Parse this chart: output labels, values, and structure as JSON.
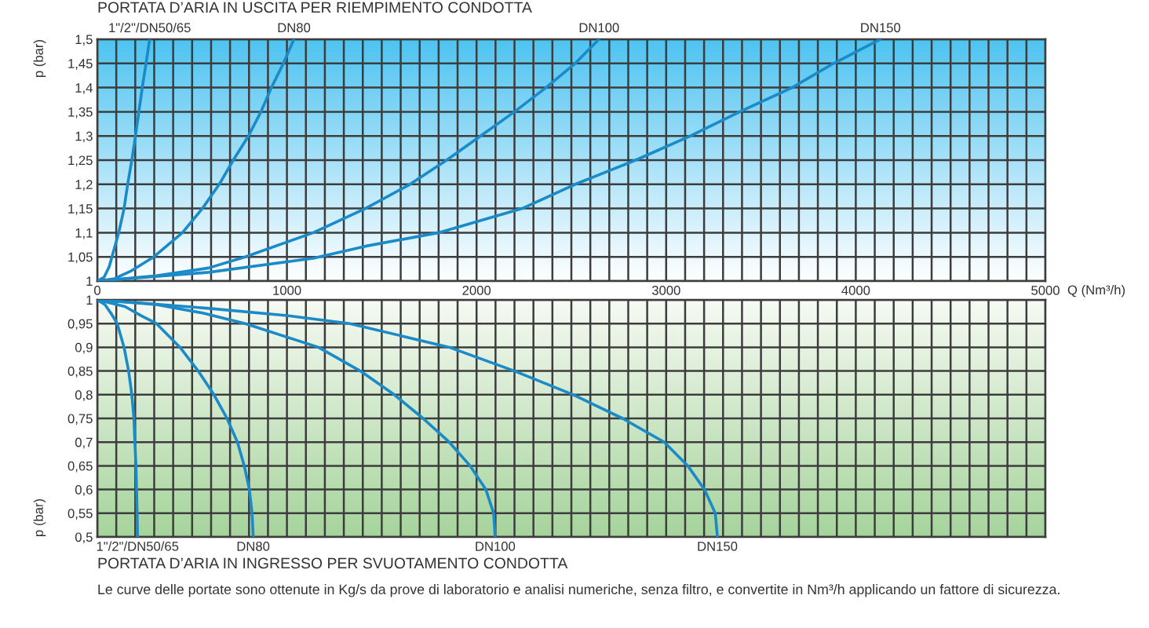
{
  "chart_data": [
    {
      "type": "line",
      "title": "PORTATA D’ARIA IN USCITA PER RIEMPIMENTO CONDOTTA",
      "xlabel": "Q (Nm³/h)",
      "ylabel": "p (bar)",
      "xlim": [
        0,
        5000
      ],
      "ylim": [
        1,
        1.5
      ],
      "xticks": [
        0,
        {
          "value": 100,
          "label": null
        },
        {
          "value": 200,
          "label": null
        },
        {
          "value": 300,
          "label": null
        },
        {
          "value": 400,
          "label": null
        },
        {
          "value": 500,
          "label": null
        },
        {
          "value": 600,
          "label": null
        },
        {
          "value": 700,
          "label": null
        },
        {
          "value": 800,
          "label": null
        },
        {
          "value": 900,
          "label": null
        },
        1000,
        {
          "value": 1100,
          "label": null
        },
        {
          "value": 1200,
          "label": null
        },
        {
          "value": 1300,
          "label": null
        },
        {
          "value": 1400,
          "label": null
        },
        {
          "value": 1500,
          "label": null
        },
        {
          "value": 1600,
          "label": null
        },
        {
          "value": 1700,
          "label": null
        },
        {
          "value": 1800,
          "label": null
        },
        {
          "value": 1900,
          "label": null
        },
        2000,
        {
          "value": 2100,
          "label": null
        },
        {
          "value": 2200,
          "label": null
        },
        {
          "value": 2300,
          "label": null
        },
        {
          "value": 2400,
          "label": null
        },
        {
          "value": 2500,
          "label": null
        },
        {
          "value": 2600,
          "label": null
        },
        {
          "value": 2700,
          "label": null
        },
        {
          "value": 2800,
          "label": null
        },
        {
          "value": 2900,
          "label": null
        },
        3000,
        {
          "value": 3100,
          "label": null
        },
        {
          "value": 3200,
          "label": null
        },
        {
          "value": 3300,
          "label": null
        },
        {
          "value": 3400,
          "label": null
        },
        {
          "value": 3500,
          "label": null
        },
        {
          "value": 3600,
          "label": null
        },
        {
          "value": 3700,
          "label": null
        },
        {
          "value": 3800,
          "label": null
        },
        {
          "value": 3900,
          "label": null
        },
        4000,
        {
          "value": 4100,
          "label": null
        },
        {
          "value": 4200,
          "label": null
        },
        {
          "value": 4300,
          "label": null
        },
        {
          "value": 4400,
          "label": null
        },
        {
          "value": 4500,
          "label": null
        },
        {
          "value": 4600,
          "label": null
        },
        {
          "value": 4700,
          "label": null
        },
        {
          "value": 4800,
          "label": null
        },
        {
          "value": 4900,
          "label": null
        },
        5000
      ],
      "yticks": [
        1,
        {
          "value": 1.05,
          "label": "1,05"
        },
        {
          "value": 1.1,
          "label": "1,1"
        },
        {
          "value": 1.15,
          "label": "1,15"
        },
        {
          "value": 1.2,
          "label": "1,2"
        },
        {
          "value": 1.25,
          "label": "1,25"
        },
        {
          "value": 1.3,
          "label": "1,3"
        },
        {
          "value": 1.35,
          "label": "1,35"
        },
        {
          "value": 1.4,
          "label": "1,4"
        },
        {
          "value": 1.45,
          "label": "1,45"
        },
        {
          "value": 1.5,
          "label": "1,5"
        }
      ],
      "grid": true,
      "series": [
        {
          "name": "1\"/2\"/DN50/65",
          "color": "#1a8bc8",
          "x": [
            0,
            36,
            63,
            77,
            113,
            141,
            160,
            182,
            201,
            219,
            237,
            257,
            276
          ],
          "values": [
            1,
            1.008,
            1.03,
            1.05,
            1.1,
            1.15,
            1.2,
            1.25,
            1.3,
            1.35,
            1.4,
            1.45,
            1.5
          ]
        },
        {
          "name": "DN80",
          "color": "#1a8bc8",
          "x": [
            0,
            91,
            174,
            298,
            449,
            554,
            643,
            717,
            797,
            863,
            918,
            981,
            1037
          ],
          "values": [
            1,
            1.005,
            1.02,
            1.05,
            1.1,
            1.15,
            1.2,
            1.25,
            1.3,
            1.35,
            1.4,
            1.45,
            1.5
          ]
        },
        {
          "name": "DN100",
          "color": "#1a8bc8",
          "x": [
            0,
            311,
            587,
            780,
            1139,
            1414,
            1649,
            1842,
            2021,
            2200,
            2366,
            2520,
            2646
          ],
          "values": [
            1,
            1.011,
            1.027,
            1.05,
            1.1,
            1.15,
            1.2,
            1.25,
            1.3,
            1.35,
            1.4,
            1.45,
            1.5
          ]
        },
        {
          "name": "DN150",
          "color": "#1a8bc8",
          "x": [
            0,
            587,
            1139,
            1414,
            1800,
            2241,
            2520,
            2839,
            3128,
            3388,
            3664,
            3883,
            4130
          ],
          "values": [
            1,
            1.018,
            1.047,
            1.072,
            1.1,
            1.15,
            1.2,
            1.25,
            1.3,
            1.35,
            1.4,
            1.45,
            1.5
          ]
        }
      ]
    },
    {
      "type": "line",
      "title": "PORTATA D’ARIA IN INGRESSO PER SVUOTAMENTO CONDOTTA",
      "ylabel": "p (bar)",
      "annotations": [
        "Le curve delle portate sono ottenute in Kg/s da prove di laboratorio e analisi numeriche, senza filtro, e convertite in Nm³/h applicando un fattore di sicurezza."
      ],
      "xlim": [
        0,
        5000
      ],
      "ylim": [
        0.5,
        1
      ],
      "xticks": [
        0,
        {
          "value": 100,
          "label": null
        },
        {
          "value": 200,
          "label": null
        },
        {
          "value": 300,
          "label": null
        },
        {
          "value": 400,
          "label": null
        },
        {
          "value": 500,
          "label": null
        },
        {
          "value": 600,
          "label": null
        },
        {
          "value": 700,
          "label": null
        },
        {
          "value": 800,
          "label": null
        },
        {
          "value": 900,
          "label": null
        },
        1000,
        {
          "value": 1100,
          "label": null
        },
        {
          "value": 1200,
          "label": null
        },
        {
          "value": 1300,
          "label": null
        },
        {
          "value": 1400,
          "label": null
        },
        {
          "value": 1500,
          "label": null
        },
        {
          "value": 1600,
          "label": null
        },
        {
          "value": 1700,
          "label": null
        },
        {
          "value": 1800,
          "label": null
        },
        {
          "value": 1900,
          "label": null
        },
        2000,
        {
          "value": 2100,
          "label": null
        },
        {
          "value": 2200,
          "label": null
        },
        {
          "value": 2300,
          "label": null
        },
        {
          "value": 2400,
          "label": null
        },
        {
          "value": 2500,
          "label": null
        },
        {
          "value": 2600,
          "label": null
        },
        {
          "value": 2700,
          "label": null
        },
        {
          "value": 2800,
          "label": null
        },
        {
          "value": 2900,
          "label": null
        },
        3000,
        {
          "value": 3100,
          "label": null
        },
        {
          "value": 3200,
          "label": null
        },
        {
          "value": 3300,
          "label": null
        },
        {
          "value": 3400,
          "label": null
        },
        {
          "value": 3500,
          "label": null
        },
        {
          "value": 3600,
          "label": null
        },
        {
          "value": 3700,
          "label": null
        },
        {
          "value": 3800,
          "label": null
        },
        {
          "value": 3900,
          "label": null
        },
        4000,
        {
          "value": 4100,
          "label": null
        },
        {
          "value": 4200,
          "label": null
        },
        {
          "value": 4300,
          "label": null
        },
        {
          "value": 4400,
          "label": null
        },
        {
          "value": 4500,
          "label": null
        },
        {
          "value": 4600,
          "label": null
        },
        {
          "value": 4700,
          "label": null
        },
        {
          "value": 4800,
          "label": null
        },
        {
          "value": 4900,
          "label": null
        },
        5000
      ],
      "yticks": [
        {
          "value": 0.5,
          "label": "0,5"
        },
        {
          "value": 0.55,
          "label": "0,55"
        },
        {
          "value": 0.6,
          "label": "0,6"
        },
        {
          "value": 0.65,
          "label": "0,65"
        },
        {
          "value": 0.7,
          "label": "0,7"
        },
        {
          "value": 0.75,
          "label": "0,75"
        },
        {
          "value": 0.8,
          "label": "0,8"
        },
        {
          "value": 0.85,
          "label": "0,85"
        },
        {
          "value": 0.9,
          "label": "0,9"
        },
        {
          "value": 0.95,
          "label": "0,95"
        },
        1
      ],
      "tick_labels": "y",
      "grid": true,
      "series": [
        {
          "name": "1\"/2\"/DN50/65",
          "color": "#1a8bc8",
          "x": [
            0,
            40,
            75,
            105,
            141,
            165,
            182,
            193,
            198,
            204,
            207,
            210,
            212
          ],
          "values": [
            1,
            0.99,
            0.97,
            0.95,
            0.9,
            0.85,
            0.8,
            0.75,
            0.7,
            0.65,
            0.6,
            0.55,
            0.5
          ]
        },
        {
          "name": "DN80",
          "color": "#1a8bc8",
          "x": [
            0,
            146,
            229,
            312,
            436,
            532,
            615,
            684,
            739,
            775,
            802,
            816,
            822
          ],
          "values": [
            1,
            0.986,
            0.967,
            0.95,
            0.9,
            0.85,
            0.8,
            0.75,
            0.7,
            0.65,
            0.6,
            0.55,
            0.5
          ]
        },
        {
          "name": "DN100",
          "color": "#1a8bc8",
          "x": [
            0,
            311,
            560,
            780,
            1166,
            1387,
            1566,
            1718,
            1856,
            1966,
            2049,
            2090,
            2098
          ],
          "values": [
            1,
            0.99,
            0.972,
            0.95,
            0.9,
            0.85,
            0.8,
            0.75,
            0.7,
            0.65,
            0.6,
            0.55,
            0.5
          ]
        },
        {
          "name": "DN150",
          "color": "#1a8bc8",
          "x": [
            0,
            311,
            590,
            1000,
            1332,
            1856,
            2200,
            2510,
            2770,
            2990,
            3114,
            3202,
            3259,
            3270
          ],
          "values": [
            1,
            0.991,
            0.982,
            0.967,
            0.95,
            0.9,
            0.85,
            0.8,
            0.75,
            0.7,
            0.65,
            0.6,
            0.55,
            0.5
          ]
        }
      ]
    }
  ]
}
